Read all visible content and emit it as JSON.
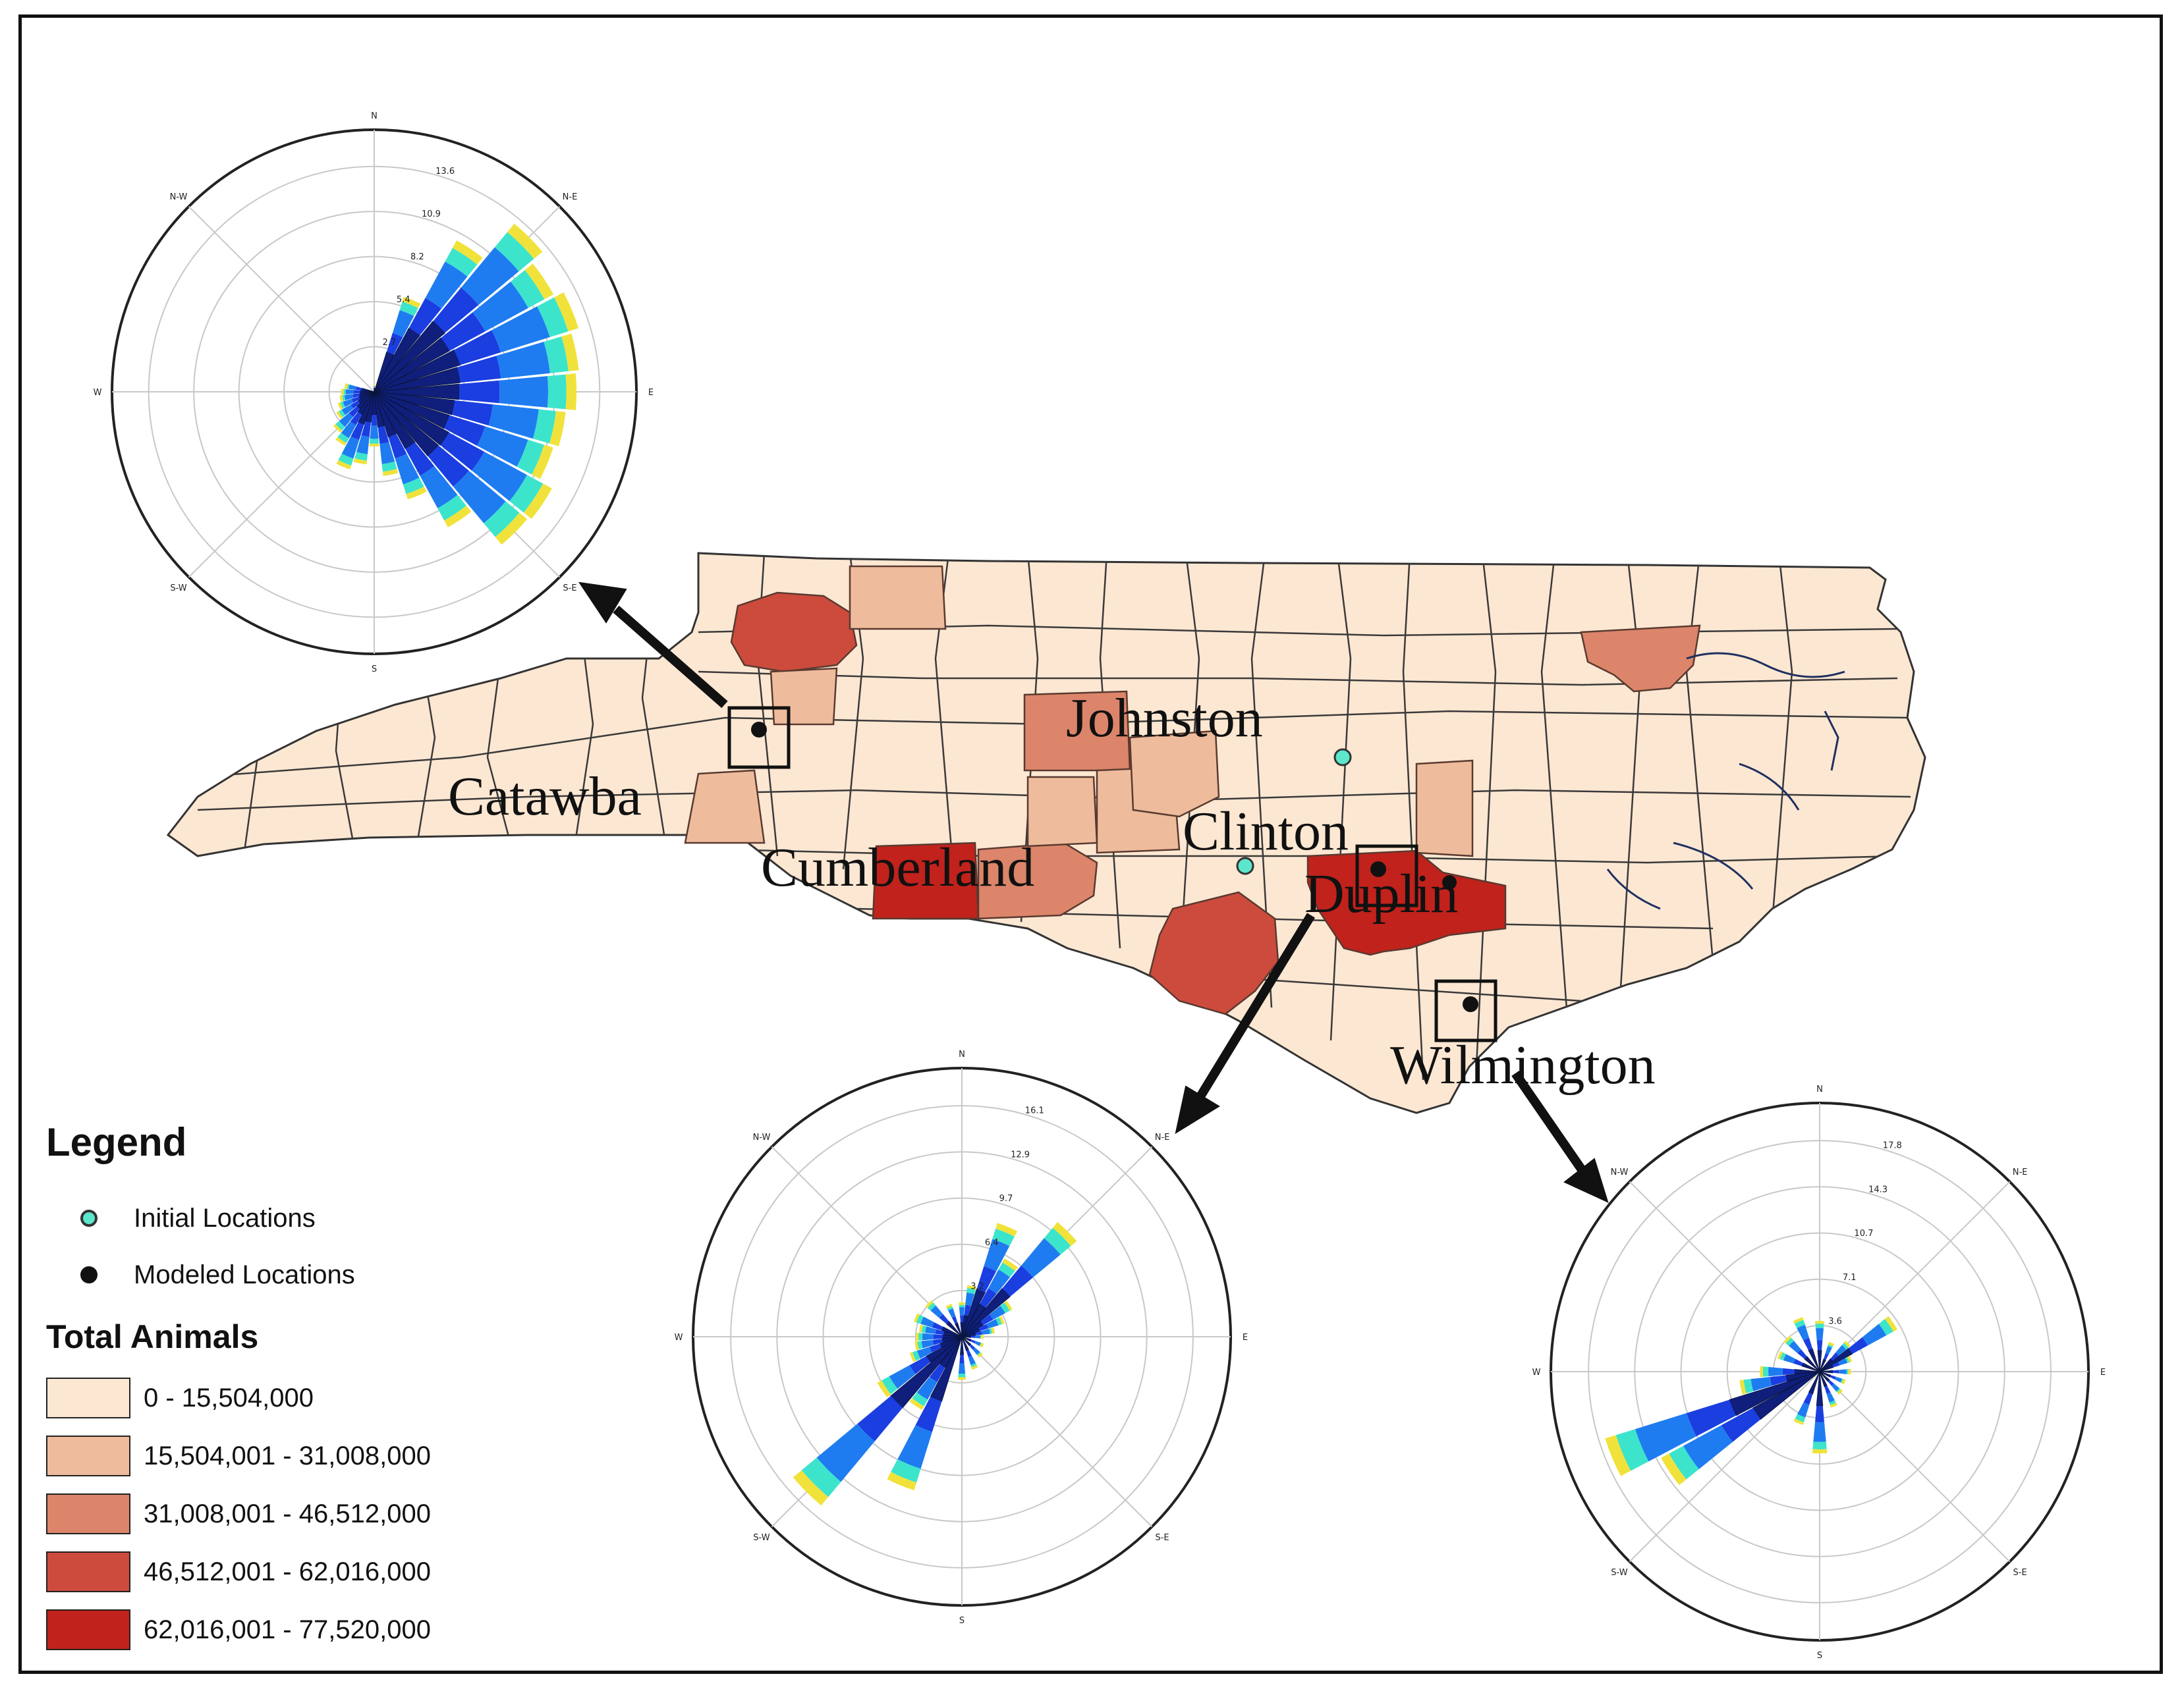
{
  "colors": {
    "class0": "#fce7d2",
    "class1": "#eebc9c",
    "class2": "#dc856a",
    "class3": "#cd4b3d",
    "class4": "#c1221c",
    "initial_location": "#5ce6cc",
    "modeled_location": "#111111",
    "rose_bands": [
      "#0a1640",
      "#101f7c",
      "#1b3ee0",
      "#1e7cf0",
      "#3ce4cc",
      "#f0e23a",
      "#d81e1e"
    ]
  },
  "places": {
    "catawba": "Catawba",
    "johnston": "Johnston",
    "clinton": "Clinton",
    "cumberland": "Cumberland",
    "duplin": "Duplin",
    "wilmington": "Wilmington"
  },
  "legend": {
    "title": "Legend",
    "initial_label": "Initial Locations",
    "modeled_label": "Modeled Locations",
    "classes_title": "Total Animals",
    "classes": [
      "0 - 15,504,000",
      "15,504,001 - 31,008,000",
      "31,008,001 - 46,512,000",
      "46,512,001 - 62,016,000",
      "62,016,001 - 77,520,000"
    ]
  },
  "wind_roses": [
    {
      "directions": [
        "N",
        "N-E",
        "E",
        "S-E",
        "S",
        "S-W",
        "W",
        "N-W"
      ],
      "ring_labels": [
        "2.7",
        "5.4",
        "8.2",
        "10.9",
        "13.6"
      ],
      "max": 13.6,
      "petals": [
        {
          "dir": 0,
          "total": 0.5
        },
        {
          "dir": 22.5,
          "total": 6.0
        },
        {
          "dir": 33.75,
          "total": 10.4
        },
        {
          "dir": 45,
          "total": 13.2
        },
        {
          "dir": 56.25,
          "total": 12.3
        },
        {
          "dir": 67.5,
          "total": 12.9
        },
        {
          "dir": 78.75,
          "total": 12.4
        },
        {
          "dir": 90,
          "total": 12.2
        },
        {
          "dir": 101.25,
          "total": 11.6
        },
        {
          "dir": 112.5,
          "total": 11.3
        },
        {
          "dir": 123.75,
          "total": 12.2
        },
        {
          "dir": 135,
          "total": 12.0
        },
        {
          "dir": 146.25,
          "total": 9.3
        },
        {
          "dir": 157.5,
          "total": 6.8
        },
        {
          "dir": 168.75,
          "total": 5.1
        },
        {
          "dir": 180,
          "total": 3.3
        },
        {
          "dir": 191.25,
          "total": 4.4
        },
        {
          "dir": 202.5,
          "total": 4.9
        },
        {
          "dir": 213.75,
          "total": 3.7
        },
        {
          "dir": 225,
          "total": 3.2
        },
        {
          "dir": 236.25,
          "total": 2.6
        },
        {
          "dir": 247.5,
          "total": 2.3
        },
        {
          "dir": 258.75,
          "total": 2.1
        },
        {
          "dir": 270,
          "total": 2.0
        },
        {
          "dir": 281.25,
          "total": 1.8
        }
      ]
    },
    {
      "directions": [
        "N",
        "N-E",
        "E",
        "S-E",
        "S",
        "S-W",
        "W",
        "N-W"
      ],
      "ring_labels": [
        "3.2",
        "6.4",
        "9.7",
        "12.9",
        "16.1"
      ],
      "max": 16.1,
      "petals": [
        {
          "dir": 0,
          "total": 2.4
        },
        {
          "dir": 11.25,
          "total": 3.6
        },
        {
          "dir": 22.5,
          "total": 8.3
        },
        {
          "dir": 33.75,
          "total": 6.2
        },
        {
          "dir": 45,
          "total": 10.4
        },
        {
          "dir": 56.25,
          "total": 4.0
        },
        {
          "dir": 67.5,
          "total": 3.1
        },
        {
          "dir": 78.75,
          "total": 2.3
        },
        {
          "dir": 90,
          "total": 1.5
        },
        {
          "dir": 112.5,
          "total": 1.6
        },
        {
          "dir": 135,
          "total": 1.9
        },
        {
          "dir": 157.5,
          "total": 2.4
        },
        {
          "dir": 180,
          "total": 3.0
        },
        {
          "dir": 202.5,
          "total": 11.2
        },
        {
          "dir": 213.75,
          "total": 5.8
        },
        {
          "dir": 225,
          "total": 15.3
        },
        {
          "dir": 236.25,
          "total": 6.7
        },
        {
          "dir": 247.5,
          "total": 3.8
        },
        {
          "dir": 258.75,
          "total": 3.3
        },
        {
          "dir": 270,
          "total": 3.2
        },
        {
          "dir": 281.25,
          "total": 3.0
        },
        {
          "dir": 292.5,
          "total": 3.5
        },
        {
          "dir": 315,
          "total": 3.3
        },
        {
          "dir": 337.5,
          "total": 2.4
        }
      ]
    },
    {
      "directions": [
        "N",
        "N-E",
        "E",
        "S-E",
        "S",
        "S-W",
        "W",
        "N-W"
      ],
      "ring_labels": [
        "3.6",
        "7.1",
        "10.7",
        "14.3",
        "17.8"
      ],
      "max": 17.8,
      "petals": [
        {
          "dir": 0,
          "total": 3.9
        },
        {
          "dir": 22.5,
          "total": 2.4
        },
        {
          "dir": 45,
          "total": 3.1
        },
        {
          "dir": 56.25,
          "total": 6.8
        },
        {
          "dir": 67.5,
          "total": 2.6
        },
        {
          "dir": 90,
          "total": 2.4
        },
        {
          "dir": 112.5,
          "total": 2.1
        },
        {
          "dir": 135,
          "total": 2.3
        },
        {
          "dir": 157.5,
          "total": 2.9
        },
        {
          "dir": 180,
          "total": 6.3
        },
        {
          "dir": 202.5,
          "total": 4.3
        },
        {
          "dir": 236.25,
          "total": 13.9
        },
        {
          "dir": 247.5,
          "total": 17.3
        },
        {
          "dir": 258.75,
          "total": 6.2
        },
        {
          "dir": 270,
          "total": 4.6
        },
        {
          "dir": 292.5,
          "total": 3.4
        },
        {
          "dir": 315,
          "total": 3.6
        },
        {
          "dir": 337.5,
          "total": 4.4
        }
      ]
    }
  ]
}
